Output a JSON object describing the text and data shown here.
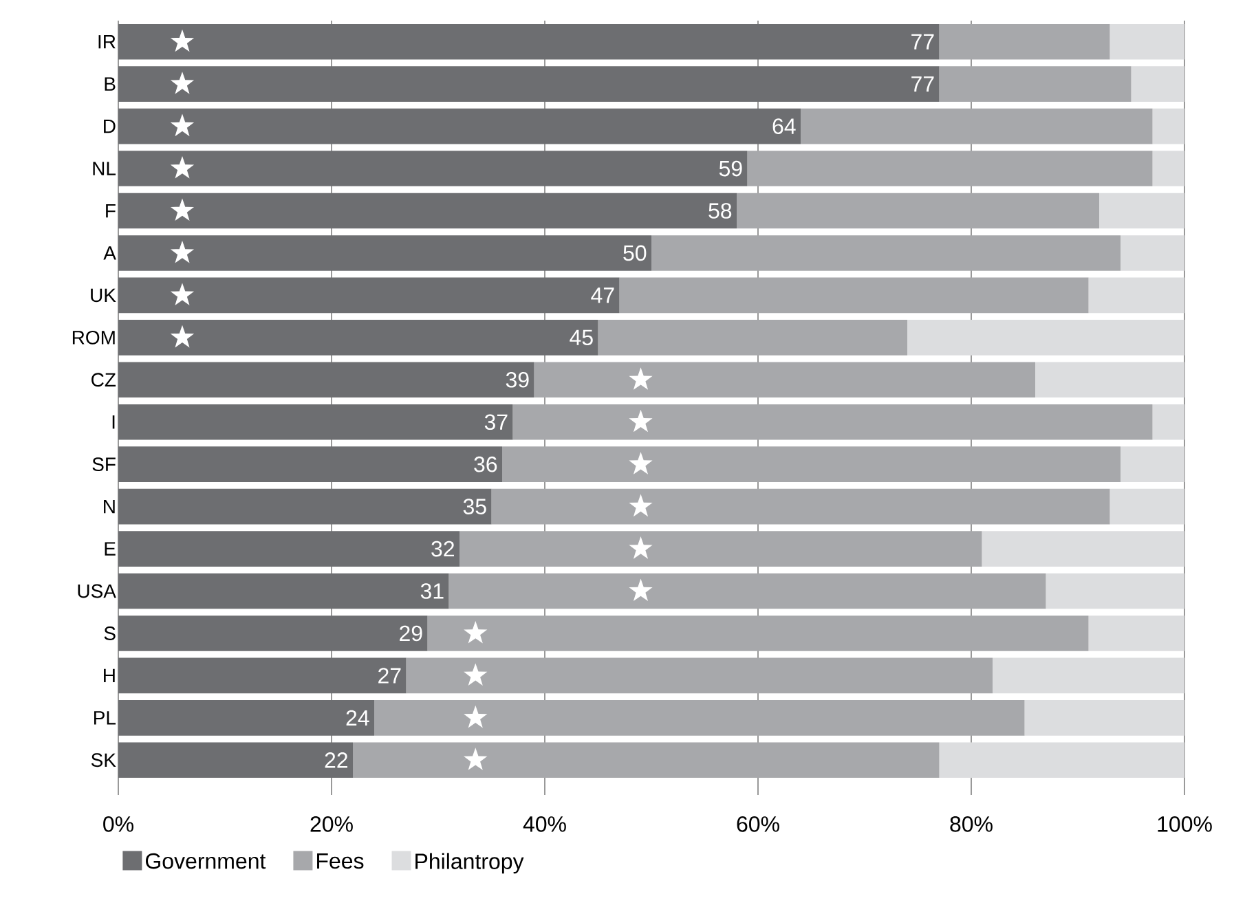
{
  "chart_data": {
    "type": "bar",
    "orientation": "horizontal",
    "stacked": true,
    "categories": [
      "IR",
      "B",
      "D",
      "NL",
      "F",
      "A",
      "UK",
      "ROM",
      "CZ",
      "I",
      "SF",
      "N",
      "E",
      "USA",
      "S",
      "H",
      "PL",
      "SK"
    ],
    "series": [
      {
        "name": "Government",
        "color": "#6d6e71",
        "values": [
          77,
          77,
          64,
          59,
          58,
          50,
          47,
          45,
          39,
          37,
          36,
          35,
          32,
          31,
          29,
          27,
          24,
          22
        ],
        "value_labels": [
          "77",
          "77",
          "64",
          "59",
          "58",
          "50",
          "47",
          "45",
          "39",
          "37",
          "36",
          "35",
          "32",
          "31",
          "29",
          "27",
          "24",
          "22"
        ]
      },
      {
        "name": "Fees",
        "color": "#a7a8ab",
        "values": [
          16,
          18,
          33,
          38,
          34,
          44,
          44,
          29,
          47,
          60,
          58,
          58,
          49,
          56,
          62,
          55,
          61,
          55
        ]
      },
      {
        "name": "Philantropy",
        "color": "#dcdddf",
        "values": [
          7,
          5,
          3,
          3,
          8,
          6,
          9,
          26,
          14,
          3,
          6,
          7,
          19,
          13,
          9,
          18,
          15,
          23
        ]
      },
      {
        "type": "scatter",
        "marker": "star",
        "color": "#ffffff",
        "values": [
          6,
          6,
          6,
          6,
          6,
          6,
          6,
          6,
          49,
          49,
          49,
          49,
          49,
          49,
          33.5,
          33.5,
          33.5,
          33.5
        ]
      }
    ],
    "xlim": [
      0,
      100
    ],
    "xticks": [
      {
        "value": 0,
        "label": "0%"
      },
      {
        "value": 20,
        "label": "20%"
      },
      {
        "value": 40,
        "label": "40%"
      },
      {
        "value": 60,
        "label": "60%"
      },
      {
        "value": 80,
        "label": "80%"
      },
      {
        "value": 100,
        "label": "100%"
      }
    ],
    "grid": "x",
    "legend": "bottom left"
  }
}
